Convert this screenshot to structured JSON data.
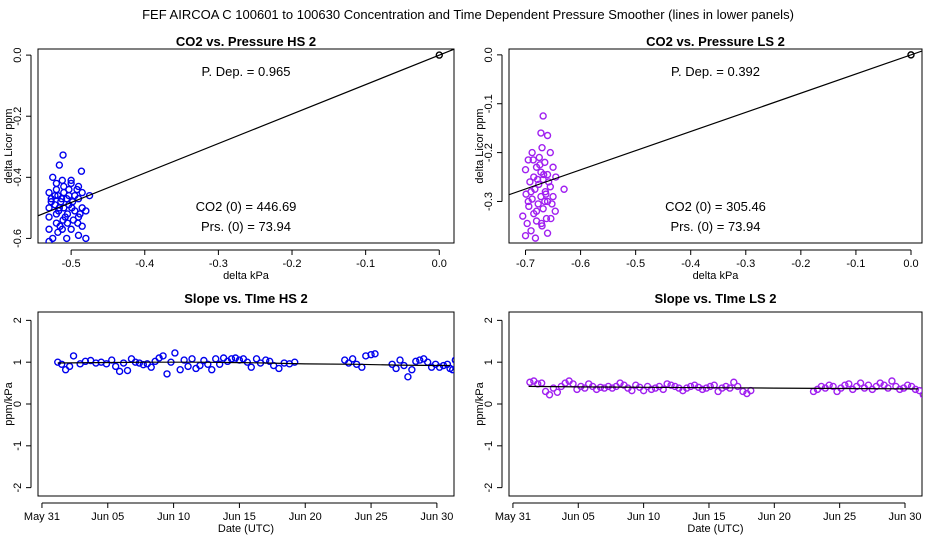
{
  "header": {
    "title": "FEF   AIRCOA C   100601 to 100630   Concentration and Time Dependent Pressure Smoother (lines in lower panels)"
  },
  "colors": {
    "hs": "#0000ee",
    "ls": "#a020f0",
    "axis": "#000000"
  },
  "chart_data": [
    {
      "id": "hs-scatter",
      "type": "scatter",
      "title": "CO2 vs. Pressure HS 2",
      "xlabel": "delta kPa",
      "ylabel": "delta Licor ppm",
      "xlim": [
        -0.545,
        0.02
      ],
      "ylim": [
        -0.615,
        0.02
      ],
      "xticks": [
        -0.5,
        -0.4,
        -0.3,
        -0.2,
        -0.1,
        0.0
      ],
      "xtick_labels": [
        "-0.5",
        "-0.4",
        "-0.3",
        "-0.2",
        "-0.1",
        "0.0"
      ],
      "yticks": [
        0.0,
        -0.2,
        -0.4,
        -0.6
      ],
      "ytick_labels": [
        "0.0",
        "-0.2",
        "-0.4",
        "-0.6"
      ],
      "fit_line": {
        "slope": 0.965,
        "intercept": 0.0
      },
      "annotations": {
        "pdep": "P. Dep. =  0.965",
        "co2": "CO2 (0) =  446.69",
        "prs": "Prs. (0) =  73.94"
      },
      "points": [
        [
          -0.511,
          -0.327
        ],
        [
          -0.516,
          -0.36
        ],
        [
          -0.486,
          -0.38
        ],
        [
          -0.525,
          -0.4
        ],
        [
          -0.5,
          -0.41
        ],
        [
          -0.512,
          -0.41
        ],
        [
          -0.52,
          -0.42
        ],
        [
          -0.5,
          -0.42
        ],
        [
          -0.49,
          -0.43
        ],
        [
          -0.51,
          -0.43
        ],
        [
          -0.52,
          -0.44
        ],
        [
          -0.503,
          -0.44
        ],
        [
          -0.485,
          -0.45
        ],
        [
          -0.53,
          -0.45
        ],
        [
          -0.51,
          -0.45
        ],
        [
          -0.495,
          -0.46
        ],
        [
          -0.518,
          -0.46
        ],
        [
          -0.475,
          -0.46
        ],
        [
          -0.527,
          -0.47
        ],
        [
          -0.506,
          -0.47
        ],
        [
          -0.49,
          -0.47
        ],
        [
          -0.514,
          -0.48
        ],
        [
          -0.498,
          -0.48
        ],
        [
          -0.522,
          -0.49
        ],
        [
          -0.503,
          -0.49
        ],
        [
          -0.485,
          -0.5
        ],
        [
          -0.51,
          -0.5
        ],
        [
          -0.53,
          -0.5
        ],
        [
          -0.495,
          -0.51
        ],
        [
          -0.517,
          -0.51
        ],
        [
          -0.48,
          -0.51
        ],
        [
          -0.505,
          -0.52
        ],
        [
          -0.52,
          -0.52
        ],
        [
          -0.49,
          -0.53
        ],
        [
          -0.53,
          -0.53
        ],
        [
          -0.511,
          -0.54
        ],
        [
          -0.497,
          -0.54
        ],
        [
          -0.52,
          -0.55
        ],
        [
          -0.505,
          -0.55
        ],
        [
          -0.485,
          -0.56
        ],
        [
          -0.515,
          -0.56
        ],
        [
          -0.53,
          -0.57
        ],
        [
          -0.5,
          -0.57
        ],
        [
          -0.518,
          -0.58
        ],
        [
          -0.49,
          -0.59
        ],
        [
          -0.525,
          -0.6
        ],
        [
          -0.506,
          -0.6
        ],
        [
          -0.53,
          -0.61
        ],
        [
          -0.48,
          -0.6
        ],
        [
          -0.513,
          -0.47
        ],
        [
          -0.492,
          -0.44
        ],
        [
          -0.508,
          -0.53
        ],
        [
          -0.522,
          -0.46
        ],
        [
          -0.499,
          -0.5
        ],
        [
          -0.488,
          -0.52
        ],
        [
          -0.516,
          -0.5
        ],
        [
          -0.527,
          -0.48
        ],
        [
          -0.503,
          -0.46
        ],
        [
          -0.491,
          -0.55
        ],
        [
          -0.512,
          -0.57
        ],
        [
          0.0,
          0.0
        ]
      ]
    },
    {
      "id": "ls-scatter",
      "type": "scatter",
      "title": "CO2 vs. Pressure LS 2",
      "xlabel": "delta kPa",
      "ylabel": "delta Licor ppm",
      "xlim": [
        -0.73,
        0.02
      ],
      "ylim": [
        -0.385,
        0.012
      ],
      "xticks": [
        -0.7,
        -0.6,
        -0.5,
        -0.4,
        -0.3,
        -0.2,
        -0.1,
        0.0
      ],
      "xtick_labels": [
        "-0.7",
        "-0.6",
        "-0.5",
        "-0.4",
        "-0.3",
        "-0.2",
        "-0.1",
        "0.0"
      ],
      "yticks": [
        0.0,
        -0.1,
        -0.2,
        -0.3
      ],
      "ytick_labels": [
        "0.0",
        "-0.1",
        "-0.2",
        "-0.3"
      ],
      "fit_line": {
        "slope": 0.392,
        "intercept": 0.0
      },
      "annotations": {
        "pdep": "P. Dep. =  0.392",
        "co2": "CO2 (0) =  305.46",
        "prs": "Prs. (0) =  73.94"
      },
      "points": [
        [
          -0.668,
          -0.125
        ],
        [
          -0.672,
          -0.16
        ],
        [
          -0.66,
          -0.165
        ],
        [
          -0.67,
          -0.19
        ],
        [
          -0.688,
          -0.2
        ],
        [
          -0.655,
          -0.2
        ],
        [
          -0.675,
          -0.21
        ],
        [
          -0.695,
          -0.215
        ],
        [
          -0.665,
          -0.22
        ],
        [
          -0.68,
          -0.23
        ],
        [
          -0.65,
          -0.23
        ],
        [
          -0.7,
          -0.235
        ],
        [
          -0.672,
          -0.24
        ],
        [
          -0.66,
          -0.245
        ],
        [
          -0.685,
          -0.25
        ],
        [
          -0.645,
          -0.25
        ],
        [
          -0.668,
          -0.255
        ],
        [
          -0.692,
          -0.26
        ],
        [
          -0.676,
          -0.265
        ],
        [
          -0.655,
          -0.27
        ],
        [
          -0.683,
          -0.275
        ],
        [
          -0.63,
          -0.275
        ],
        [
          -0.664,
          -0.28
        ],
        [
          -0.699,
          -0.285
        ],
        [
          -0.672,
          -0.29
        ],
        [
          -0.65,
          -0.29
        ],
        [
          -0.688,
          -0.295
        ],
        [
          -0.66,
          -0.3
        ],
        [
          -0.677,
          -0.305
        ],
        [
          -0.694,
          -0.31
        ],
        [
          -0.668,
          -0.315
        ],
        [
          -0.646,
          -0.32
        ],
        [
          -0.685,
          -0.325
        ],
        [
          -0.705,
          -0.33
        ],
        [
          -0.662,
          -0.335
        ],
        [
          -0.68,
          -0.34
        ],
        [
          -0.697,
          -0.345
        ],
        [
          -0.67,
          -0.35
        ],
        [
          -0.69,
          -0.36
        ],
        [
          -0.66,
          -0.365
        ],
        [
          -0.7,
          -0.37
        ],
        [
          -0.682,
          -0.375
        ],
        [
          -0.674,
          -0.225
        ],
        [
          -0.658,
          -0.26
        ],
        [
          -0.69,
          -0.28
        ],
        [
          -0.665,
          -0.3
        ],
        [
          -0.68,
          -0.32
        ],
        [
          -0.652,
          -0.305
        ],
        [
          -0.671,
          -0.345
        ],
        [
          -0.686,
          -0.215
        ],
        [
          -0.663,
          -0.285
        ],
        [
          -0.678,
          -0.255
        ],
        [
          -0.654,
          -0.335
        ],
        [
          -0.695,
          -0.3
        ],
        [
          -0.667,
          -0.245
        ],
        [
          0.0,
          0.0
        ]
      ]
    },
    {
      "id": "hs-slope",
      "type": "scatter",
      "title": "Slope vs. TIme HS 2",
      "xlabel": "Date (UTC)",
      "ylabel": "ppm/kPa",
      "xlim": [
        -0.3,
        31.3
      ],
      "ylim": [
        -2.2,
        2.2
      ],
      "xticks": [
        0,
        5,
        10,
        15,
        20,
        25,
        30
      ],
      "xtick_labels": [
        "May 31",
        "Jun 05",
        "Jun 10",
        "Jun 15",
        "Jun 20",
        "Jun 25",
        "Jun 30"
      ],
      "yticks": [
        -2,
        -1,
        0,
        1,
        2
      ],
      "ytick_labels": [
        "-2",
        "-1",
        "0",
        "1",
        "2"
      ],
      "smooth_line": [
        [
          1.2,
          0.98
        ],
        [
          4,
          0.99
        ],
        [
          8,
          1.0
        ],
        [
          12,
          1.0
        ],
        [
          15,
          0.99
        ],
        [
          17,
          0.98
        ],
        [
          20,
          0.96
        ],
        [
          24,
          0.95
        ],
        [
          27,
          0.93
        ],
        [
          30,
          0.92
        ],
        [
          31,
          0.92
        ]
      ],
      "points": [
        [
          1.2,
          1.0
        ],
        [
          1.5,
          0.95
        ],
        [
          1.8,
          0.82
        ],
        [
          2.1,
          0.9
        ],
        [
          2.4,
          1.15
        ],
        [
          2.9,
          0.96
        ],
        [
          3.3,
          1.02
        ],
        [
          3.7,
          1.04
        ],
        [
          4.1,
          0.98
        ],
        [
          4.5,
          1.0
        ],
        [
          4.9,
          0.96
        ],
        [
          5.3,
          1.05
        ],
        [
          5.6,
          0.9
        ],
        [
          5.9,
          0.78
        ],
        [
          6.2,
          0.98
        ],
        [
          6.5,
          0.8
        ],
        [
          6.8,
          1.08
        ],
        [
          7.1,
          1.0
        ],
        [
          7.4,
          0.98
        ],
        [
          7.7,
          0.94
        ],
        [
          8.0,
          0.96
        ],
        [
          8.3,
          0.88
        ],
        [
          8.6,
          1.02
        ],
        [
          8.9,
          1.1
        ],
        [
          9.2,
          1.15
        ],
        [
          9.5,
          0.72
        ],
        [
          9.8,
          1.0
        ],
        [
          10.1,
          1.22
        ],
        [
          10.5,
          0.82
        ],
        [
          10.8,
          1.05
        ],
        [
          11.1,
          0.9
        ],
        [
          11.4,
          1.08
        ],
        [
          11.7,
          0.85
        ],
        [
          12.0,
          0.92
        ],
        [
          12.3,
          1.04
        ],
        [
          12.6,
          0.95
        ],
        [
          12.9,
          0.82
        ],
        [
          13.2,
          1.08
        ],
        [
          13.5,
          0.95
        ],
        [
          13.8,
          1.1
        ],
        [
          14.1,
          1.02
        ],
        [
          14.4,
          1.08
        ],
        [
          14.7,
          1.1
        ],
        [
          15.0,
          1.05
        ],
        [
          15.3,
          1.08
        ],
        [
          15.6,
          1.0
        ],
        [
          15.9,
          0.88
        ],
        [
          16.3,
          1.08
        ],
        [
          16.6,
          0.98
        ],
        [
          17.0,
          1.05
        ],
        [
          17.3,
          1.02
        ],
        [
          17.6,
          0.92
        ],
        [
          18.0,
          0.85
        ],
        [
          18.4,
          0.98
        ],
        [
          18.8,
          0.96
        ],
        [
          19.2,
          1.0
        ],
        [
          23.0,
          1.05
        ],
        [
          23.3,
          0.98
        ],
        [
          23.6,
          1.08
        ],
        [
          23.9,
          0.95
        ],
        [
          24.3,
          0.88
        ],
        [
          24.6,
          1.15
        ],
        [
          25.0,
          1.18
        ],
        [
          25.3,
          1.2
        ],
        [
          26.6,
          0.95
        ],
        [
          26.9,
          0.85
        ],
        [
          27.2,
          1.05
        ],
        [
          27.5,
          0.92
        ],
        [
          27.8,
          0.65
        ],
        [
          28.1,
          0.82
        ],
        [
          28.4,
          1.02
        ],
        [
          28.7,
          1.05
        ],
        [
          29.0,
          1.08
        ],
        [
          29.3,
          1.0
        ],
        [
          29.6,
          0.88
        ],
        [
          29.9,
          0.95
        ],
        [
          30.2,
          0.88
        ],
        [
          30.5,
          0.92
        ],
        [
          30.8,
          0.95
        ],
        [
          31.0,
          0.85
        ],
        [
          31.2,
          0.82
        ],
        [
          31.4,
          1.05
        ]
      ]
    },
    {
      "id": "ls-slope",
      "type": "scatter",
      "title": "Slope vs. TIme LS 2",
      "xlabel": "Date (UTC)",
      "ylabel": "ppm/kPa",
      "xlim": [
        -0.3,
        31.3
      ],
      "ylim": [
        -2.2,
        2.2
      ],
      "xticks": [
        0,
        5,
        10,
        15,
        20,
        25,
        30
      ],
      "xtick_labels": [
        "May 31",
        "Jun 05",
        "Jun 10",
        "Jun 15",
        "Jun 20",
        "Jun 25",
        "Jun 30"
      ],
      "yticks": [
        -2,
        -1,
        0,
        1,
        2
      ],
      "ytick_labels": [
        "-2",
        "-1",
        "0",
        "1",
        "2"
      ],
      "smooth_line": [
        [
          1.2,
          0.42
        ],
        [
          5,
          0.41
        ],
        [
          10,
          0.4
        ],
        [
          15,
          0.39
        ],
        [
          20,
          0.38
        ],
        [
          25,
          0.37
        ],
        [
          31,
          0.36
        ]
      ],
      "points": [
        [
          1.3,
          0.52
        ],
        [
          1.6,
          0.55
        ],
        [
          1.9,
          0.48
        ],
        [
          2.2,
          0.5
        ],
        [
          2.5,
          0.3
        ],
        [
          2.8,
          0.22
        ],
        [
          3.1,
          0.38
        ],
        [
          3.4,
          0.28
        ],
        [
          3.7,
          0.42
        ],
        [
          4.0,
          0.5
        ],
        [
          4.3,
          0.55
        ],
        [
          4.6,
          0.48
        ],
        [
          4.9,
          0.35
        ],
        [
          5.2,
          0.42
        ],
        [
          5.5,
          0.38
        ],
        [
          5.8,
          0.48
        ],
        [
          6.1,
          0.42
        ],
        [
          6.4,
          0.35
        ],
        [
          6.7,
          0.4
        ],
        [
          7.0,
          0.38
        ],
        [
          7.3,
          0.42
        ],
        [
          7.6,
          0.38
        ],
        [
          7.9,
          0.42
        ],
        [
          8.2,
          0.5
        ],
        [
          8.5,
          0.45
        ],
        [
          8.8,
          0.38
        ],
        [
          9.1,
          0.32
        ],
        [
          9.4,
          0.45
        ],
        [
          9.7,
          0.4
        ],
        [
          10.0,
          0.32
        ],
        [
          10.3,
          0.42
        ],
        [
          10.6,
          0.35
        ],
        [
          10.9,
          0.38
        ],
        [
          11.2,
          0.42
        ],
        [
          11.5,
          0.35
        ],
        [
          11.8,
          0.48
        ],
        [
          12.1,
          0.45
        ],
        [
          12.4,
          0.42
        ],
        [
          12.7,
          0.38
        ],
        [
          13.0,
          0.32
        ],
        [
          13.3,
          0.38
        ],
        [
          13.6,
          0.42
        ],
        [
          13.9,
          0.45
        ],
        [
          14.2,
          0.4
        ],
        [
          14.5,
          0.35
        ],
        [
          14.8,
          0.38
        ],
        [
          15.1,
          0.42
        ],
        [
          15.4,
          0.45
        ],
        [
          15.7,
          0.3
        ],
        [
          16.0,
          0.38
        ],
        [
          16.3,
          0.42
        ],
        [
          16.6,
          0.38
        ],
        [
          16.9,
          0.52
        ],
        [
          17.2,
          0.42
        ],
        [
          17.6,
          0.3
        ],
        [
          17.9,
          0.25
        ],
        [
          18.2,
          0.32
        ],
        [
          23.0,
          0.3
        ],
        [
          23.3,
          0.35
        ],
        [
          23.6,
          0.42
        ],
        [
          23.9,
          0.38
        ],
        [
          24.2,
          0.45
        ],
        [
          24.5,
          0.42
        ],
        [
          24.8,
          0.3
        ],
        [
          25.1,
          0.38
        ],
        [
          25.4,
          0.45
        ],
        [
          25.7,
          0.48
        ],
        [
          26.0,
          0.35
        ],
        [
          26.3,
          0.42
        ],
        [
          26.6,
          0.5
        ],
        [
          26.9,
          0.38
        ],
        [
          27.2,
          0.45
        ],
        [
          27.5,
          0.35
        ],
        [
          27.8,
          0.42
        ],
        [
          28.1,
          0.5
        ],
        [
          28.4,
          0.45
        ],
        [
          28.7,
          0.38
        ],
        [
          29.0,
          0.55
        ],
        [
          29.3,
          0.42
        ],
        [
          29.6,
          0.35
        ],
        [
          29.9,
          0.38
        ],
        [
          30.2,
          0.45
        ],
        [
          30.5,
          0.42
        ],
        [
          30.8,
          0.35
        ],
        [
          31.1,
          0.32
        ],
        [
          31.4,
          0.22
        ]
      ]
    }
  ]
}
